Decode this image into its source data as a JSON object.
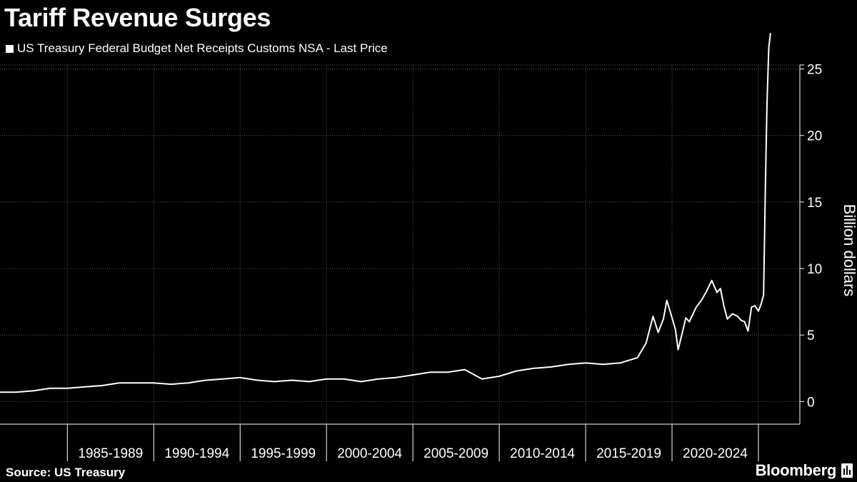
{
  "header": {
    "title": "Tariff Revenue Surges"
  },
  "footer": {
    "source": "Source: US Treasury",
    "brand": "Bloomberg"
  },
  "icons": {
    "legend_swatch": "square-swatch",
    "brand": "bloomberg-terminal-icon"
  },
  "colors": {
    "background": "#000000",
    "series": "#ffffff",
    "grid": "#5a5a5a"
  },
  "chart_data": {
    "type": "line",
    "title": "Tariff Revenue Surges",
    "ylabel": "Billion dollars",
    "ylim": [
      -1.7,
      25.3
    ],
    "y_ticks": [
      0,
      5,
      10,
      15,
      20,
      25
    ],
    "x_range": [
      1981.1,
      2027.4
    ],
    "x_tick_years": [
      1985,
      1990,
      1995,
      2000,
      2005,
      2010,
      2015,
      2020,
      2025
    ],
    "x_period_labels": [
      "1985-1989",
      "1990-1994",
      "1995-1999",
      "2000-2004",
      "2005-2009",
      "2010-2014",
      "2015-2019",
      "2020-2024"
    ],
    "grid": true,
    "legend_position": "top-left",
    "series": [
      {
        "name": "US Treasury Federal Budget Net Receipts Customs NSA - Last Price",
        "points": [
          [
            1981.1,
            0.7
          ],
          [
            1982.0,
            0.7
          ],
          [
            1983.0,
            0.8
          ],
          [
            1984.0,
            1.0
          ],
          [
            1985.0,
            1.0
          ],
          [
            1986.0,
            1.1
          ],
          [
            1987.0,
            1.2
          ],
          [
            1988.0,
            1.4
          ],
          [
            1989.0,
            1.4
          ],
          [
            1990.0,
            1.4
          ],
          [
            1991.0,
            1.3
          ],
          [
            1992.0,
            1.4
          ],
          [
            1993.0,
            1.6
          ],
          [
            1994.0,
            1.7
          ],
          [
            1995.0,
            1.8
          ],
          [
            1996.0,
            1.6
          ],
          [
            1997.0,
            1.5
          ],
          [
            1998.0,
            1.6
          ],
          [
            1999.0,
            1.5
          ],
          [
            2000.0,
            1.7
          ],
          [
            2001.0,
            1.7
          ],
          [
            2002.0,
            1.5
          ],
          [
            2003.0,
            1.7
          ],
          [
            2004.0,
            1.8
          ],
          [
            2005.0,
            2.0
          ],
          [
            2006.0,
            2.2
          ],
          [
            2007.0,
            2.2
          ],
          [
            2008.0,
            2.4
          ],
          [
            2009.0,
            1.7
          ],
          [
            2010.0,
            1.9
          ],
          [
            2011.0,
            2.3
          ],
          [
            2012.0,
            2.5
          ],
          [
            2013.0,
            2.6
          ],
          [
            2014.0,
            2.8
          ],
          [
            2015.0,
            2.9
          ],
          [
            2016.0,
            2.8
          ],
          [
            2017.0,
            2.9
          ],
          [
            2018.0,
            3.3
          ],
          [
            2018.5,
            4.4
          ],
          [
            2018.9,
            6.4
          ],
          [
            2019.2,
            5.2
          ],
          [
            2019.5,
            6.2
          ],
          [
            2019.7,
            7.6
          ],
          [
            2020.0,
            6.3
          ],
          [
            2020.2,
            5.4
          ],
          [
            2020.35,
            3.9
          ],
          [
            2020.6,
            5.2
          ],
          [
            2020.8,
            6.3
          ],
          [
            2021.0,
            6.0
          ],
          [
            2021.4,
            7.1
          ],
          [
            2021.7,
            7.6
          ],
          [
            2022.0,
            8.3
          ],
          [
            2022.3,
            9.1
          ],
          [
            2022.6,
            8.2
          ],
          [
            2022.8,
            8.5
          ],
          [
            2023.0,
            7.2
          ],
          [
            2023.2,
            6.2
          ],
          [
            2023.5,
            6.6
          ],
          [
            2023.8,
            6.4
          ],
          [
            2024.0,
            6.1
          ],
          [
            2024.2,
            6.0
          ],
          [
            2024.4,
            5.3
          ],
          [
            2024.6,
            7.1
          ],
          [
            2024.8,
            7.2
          ],
          [
            2025.0,
            6.8
          ],
          [
            2025.15,
            7.3
          ],
          [
            2025.3,
            8.0
          ],
          [
            2025.4,
            15.8
          ],
          [
            2025.5,
            22.5
          ],
          [
            2025.6,
            26.6
          ],
          [
            2025.7,
            27.7
          ]
        ]
      }
    ]
  }
}
